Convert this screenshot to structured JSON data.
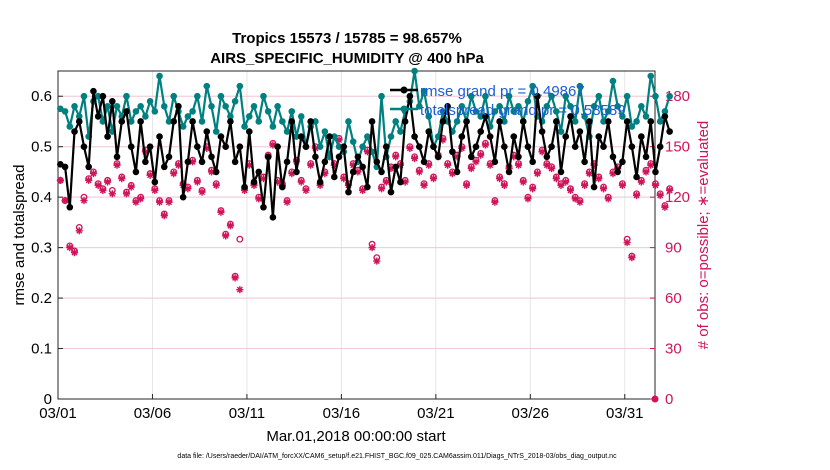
{
  "chart_data": {
    "type": "line",
    "title_line1": "Tropics 15573 / 15785 = 98.657%",
    "title_line2": "AIRS_SPECIFIC_HUMIDITY @ 400 hPa",
    "ylabel": "rmse and totalspread",
    "y2label": "# of obs: o=possible; ∗=evaluated",
    "xlabel": "Mar.01,2018 00:00:00 start",
    "footer": "data file: /Users/raeder/DAI/ATM_forcXX/CAM6_setup/f.e21.FHIST_BGC.f09_025.CAM6assim.011/Diags_NTrS_2018-03/obs_diag_output.nc",
    "xlim": [
      0,
      31.6
    ],
    "ylim": [
      0,
      0.65
    ],
    "y2lim": [
      0,
      195
    ],
    "x_ticks": [
      0,
      5,
      10,
      15,
      20,
      25,
      30
    ],
    "x_tick_labels": [
      "03/01",
      "03/06",
      "03/11",
      "03/16",
      "03/21",
      "03/26",
      "03/31"
    ],
    "y_ticks": [
      0,
      0.1,
      0.2,
      0.3,
      0.4,
      0.5,
      0.6
    ],
    "y_tick_labels": [
      "0",
      "0.1",
      "0.2",
      "0.3",
      "0.4",
      "0.5",
      "0.6"
    ],
    "y2_ticks": [
      0,
      30,
      60,
      90,
      120,
      150,
      180
    ],
    "y2_tick_labels": [
      "0",
      "30",
      "60",
      "90",
      "120",
      "150",
      "180"
    ],
    "legend": {
      "position": "top-right",
      "entries": [
        "rmse grand pr = 0.49867",
        "totalspread grand pr = 0.58589"
      ]
    },
    "colors": {
      "rmse": "#000000",
      "totalspread": "#008080",
      "obs": "#d0145a"
    },
    "x_step_days": 0.25,
    "series": [
      {
        "name": "rmse",
        "axis": "left",
        "values": [
          0.465,
          0.46,
          0.38,
          0.53,
          0.55,
          0.5,
          0.46,
          0.61,
          0.56,
          0.6,
          0.52,
          0.59,
          0.48,
          0.55,
          0.57,
          0.5,
          0.45,
          0.55,
          0.47,
          0.5,
          0.43,
          0.52,
          0.46,
          0.48,
          0.55,
          0.58,
          0.4,
          0.47,
          0.55,
          0.5,
          0.47,
          0.53,
          0.48,
          0.45,
          0.52,
          0.5,
          0.55,
          0.47,
          0.5,
          0.42,
          0.53,
          0.43,
          0.45,
          0.38,
          0.48,
          0.36,
          0.5,
          0.42,
          0.47,
          0.55,
          0.45,
          0.52,
          0.5,
          0.55,
          0.48,
          0.43,
          0.47,
          0.52,
          0.44,
          0.48,
          0.5,
          0.41,
          0.45,
          0.48,
          0.46,
          0.42,
          0.55,
          0.47,
          0.45,
          0.5,
          0.41,
          0.46,
          0.43,
          0.55,
          0.6,
          0.52,
          0.5,
          0.47,
          0.53,
          0.5,
          0.48,
          0.55,
          0.58,
          0.49,
          0.45,
          0.52,
          0.55,
          0.48,
          0.5,
          0.53,
          0.56,
          0.52,
          0.47,
          0.55,
          0.5,
          0.45,
          0.52,
          0.48,
          0.55,
          0.5,
          0.47,
          0.6,
          0.53,
          0.48,
          0.5,
          0.55,
          0.45,
          0.52,
          0.56,
          0.5,
          0.53,
          0.47,
          0.55,
          0.42,
          0.52,
          0.5,
          0.55,
          0.48,
          0.45,
          0.47,
          0.55,
          0.5,
          0.44,
          0.52,
          0.48,
          0.55,
          0.45,
          0.5,
          0.56,
          0.53
        ]
      },
      {
        "name": "totalspread",
        "axis": "left",
        "values": [
          0.575,
          0.57,
          0.54,
          0.58,
          0.56,
          0.6,
          0.52,
          0.59,
          0.6,
          0.55,
          0.58,
          0.53,
          0.58,
          0.56,
          0.6,
          0.55,
          0.57,
          0.58,
          0.56,
          0.59,
          0.57,
          0.64,
          0.58,
          0.55,
          0.6,
          0.57,
          0.54,
          0.56,
          0.57,
          0.6,
          0.55,
          0.62,
          0.58,
          0.53,
          0.6,
          0.58,
          0.56,
          0.59,
          0.62,
          0.54,
          0.56,
          0.58,
          0.55,
          0.6,
          0.57,
          0.54,
          0.58,
          0.55,
          0.53,
          0.57,
          0.52,
          0.56,
          0.5,
          0.54,
          0.55,
          0.5,
          0.53,
          0.48,
          0.52,
          0.5,
          0.49,
          0.55,
          0.51,
          0.47,
          0.5,
          0.52,
          0.49,
          0.46,
          0.6,
          0.48,
          0.52,
          0.55,
          0.53,
          0.57,
          0.59,
          0.65,
          0.58,
          0.61,
          0.56,
          0.5,
          0.52,
          0.57,
          0.55,
          0.53,
          0.55,
          0.58,
          0.55,
          0.6,
          0.57,
          0.56,
          0.6,
          0.54,
          0.57,
          0.58,
          0.55,
          0.6,
          0.57,
          0.58,
          0.55,
          0.59,
          0.62,
          0.56,
          0.55,
          0.58,
          0.6,
          0.57,
          0.53,
          0.6,
          0.58,
          0.55,
          0.62,
          0.56,
          0.52,
          0.58,
          0.6,
          0.55,
          0.57,
          0.63,
          0.58,
          0.56,
          0.6,
          0.54,
          0.55,
          0.58,
          0.56,
          0.64,
          0.6,
          0.55,
          0.57,
          0.6
        ]
      },
      {
        "name": "obs_possible",
        "axis": "right",
        "marker": "circle",
        "values": [
          130,
          118,
          91,
          88,
          102,
          120,
          131,
          135,
          128,
          125,
          130,
          124,
          140,
          132,
          123,
          127,
          118,
          120,
          148,
          134,
          125,
          118,
          110,
          118,
          135,
          140,
          128,
          126,
          142,
          130,
          124,
          150,
          136,
          128,
          112,
          98,
          104,
          73,
          95,
          125,
          140,
          128,
          120,
          132,
          145,
          152,
          130,
          128,
          118,
          135,
          142,
          130,
          125,
          140,
          150,
          128,
          135,
          145,
          140,
          155,
          132,
          128,
          140,
          136,
          125,
          148,
          92,
          84,
          126,
          130,
          138,
          145,
          140,
          130,
          150,
          144,
          136,
          128,
          140,
          132,
          145,
          155,
          140,
          135,
          145,
          150,
          128,
          138,
          142,
          146,
          152,
          140,
          118,
          132,
          128,
          138,
          145,
          140,
          130,
          120,
          126,
          135,
          148,
          140,
          138,
          132,
          128,
          130,
          125,
          120,
          118,
          128,
          135,
          140,
          132,
          126,
          120,
          135,
          138,
          128,
          95,
          85,
          122,
          130,
          136,
          140,
          128,
          122,
          115,
          125
        ]
      },
      {
        "name": "obs_evaluated",
        "axis": "right",
        "marker": "star",
        "values": [
          130,
          118,
          90,
          87,
          100,
          118,
          130,
          134,
          127,
          124,
          129,
          122,
          139,
          131,
          122,
          126,
          117,
          119,
          147,
          133,
          124,
          117,
          109,
          117,
          134,
          139,
          127,
          125,
          141,
          129,
          123,
          149,
          135,
          127,
          111,
          97,
          103,
          72,
          65,
          124,
          139,
          127,
          119,
          131,
          144,
          151,
          129,
          127,
          117,
          134,
          141,
          129,
          124,
          139,
          149,
          127,
          134,
          144,
          139,
          154,
          131,
          127,
          139,
          135,
          124,
          147,
          90,
          82,
          125,
          129,
          137,
          144,
          139,
          129,
          149,
          143,
          135,
          127,
          139,
          131,
          144,
          154,
          139,
          134,
          144,
          149,
          127,
          137,
          141,
          145,
          151,
          139,
          117,
          131,
          127,
          137,
          144,
          139,
          129,
          119,
          125,
          134,
          147,
          139,
          137,
          131,
          127,
          129,
          124,
          119,
          117,
          127,
          134,
          139,
          131,
          125,
          119,
          134,
          137,
          127,
          93,
          84,
          121,
          129,
          135,
          139,
          127,
          121,
          114,
          124
        ]
      }
    ]
  }
}
